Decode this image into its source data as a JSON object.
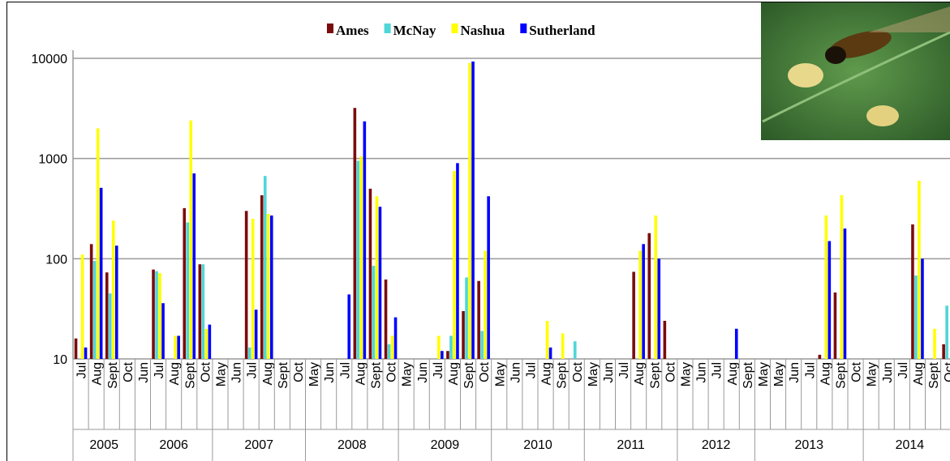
{
  "chart_data": {
    "type": "bar",
    "log": true,
    "grid": true,
    "legend": "top",
    "groups": [
      {
        "name": "2005",
        "categories": [
          "Jul",
          "Aug",
          "Sept",
          "Oct"
        ]
      },
      {
        "name": "2006",
        "categories": [
          "Jun",
          "Jul",
          "Aug",
          "Sept",
          "Oct"
        ]
      },
      {
        "name": "2007",
        "categories": [
          "May",
          "Jun",
          "Jul",
          "Aug",
          "Sept",
          "Oct"
        ]
      },
      {
        "name": "2008",
        "categories": [
          "May",
          "Jun",
          "Jul",
          "Aug",
          "Sept",
          "Oct"
        ]
      },
      {
        "name": "2009",
        "categories": [
          "May",
          "Jun",
          "Jul",
          "Aug",
          "Sept",
          "Oct"
        ]
      },
      {
        "name": "2010",
        "categories": [
          "May",
          "Jun",
          "Jul",
          "Aug",
          "Sept",
          "Oct"
        ]
      },
      {
        "name": "2011",
        "categories": [
          "May",
          "Jun",
          "Jul",
          "Aug",
          "Sept",
          "Oct"
        ]
      },
      {
        "name": "2012",
        "categories": [
          "May",
          "Jun",
          "Jul",
          "Aug",
          "Sept"
        ]
      },
      {
        "name": "2013",
        "categories": [
          "May",
          "May",
          "Jun",
          "Jul",
          "Aug",
          "Sept",
          "Oct"
        ]
      },
      {
        "name": "2014",
        "categories": [
          "May",
          "Jun",
          "Jul",
          "Aug",
          "Sept",
          "Oct"
        ]
      }
    ],
    "series": [
      {
        "name": "Ames",
        "color": "#7b0c0c",
        "values": [
          16,
          140,
          73,
          null,
          null,
          78,
          null,
          320,
          88,
          null,
          null,
          300,
          430,
          null,
          null,
          null,
          null,
          null,
          3200,
          500,
          62,
          null,
          null,
          null,
          12,
          30,
          60,
          null,
          null,
          null,
          null,
          null,
          null,
          null,
          null,
          null,
          74,
          180,
          24,
          null,
          null,
          null,
          null,
          null,
          null,
          null,
          null,
          null,
          11,
          46,
          null,
          null,
          null,
          null,
          220,
          null,
          14
        ]
      },
      {
        "name": "McNay",
        "color": "#4fd6d6",
        "values": [
          null,
          95,
          45,
          null,
          null,
          75,
          null,
          230,
          88,
          null,
          null,
          13,
          670,
          null,
          null,
          null,
          null,
          null,
          950,
          85,
          14,
          null,
          null,
          null,
          17,
          65,
          19,
          null,
          null,
          null,
          null,
          null,
          15,
          null,
          null,
          null,
          null,
          null,
          null,
          null,
          null,
          null,
          null,
          null,
          null,
          null,
          null,
          null,
          null,
          null,
          null,
          null,
          null,
          null,
          68,
          null,
          34
        ]
      },
      {
        "name": "Nashua",
        "color": "#ffff00",
        "values": [
          110,
          2000,
          240,
          null,
          null,
          72,
          17,
          2400,
          20,
          null,
          null,
          250,
          280,
          null,
          null,
          null,
          null,
          null,
          1050,
          420,
          17,
          null,
          null,
          17,
          750,
          9000,
          120,
          null,
          null,
          null,
          24,
          18,
          null,
          null,
          null,
          null,
          120,
          270,
          null,
          null,
          null,
          null,
          null,
          null,
          null,
          null,
          null,
          null,
          270,
          430,
          null,
          null,
          null,
          null,
          600,
          20,
          null
        ]
      },
      {
        "name": "Sutherland",
        "color": "#0000ff",
        "values": [
          13,
          510,
          135,
          null,
          null,
          36,
          17,
          710,
          22,
          null,
          null,
          31,
          270,
          null,
          null,
          null,
          null,
          44,
          2350,
          330,
          26,
          null,
          null,
          12,
          900,
          9300,
          420,
          null,
          null,
          null,
          13,
          null,
          null,
          null,
          null,
          null,
          140,
          100,
          null,
          null,
          null,
          null,
          20,
          null,
          null,
          null,
          null,
          null,
          150,
          200,
          null,
          null,
          null,
          null,
          100,
          null,
          null
        ]
      }
    ],
    "ylim": [
      10,
      10000
    ],
    "yticks": [
      10,
      100,
      1000,
      10000
    ]
  }
}
